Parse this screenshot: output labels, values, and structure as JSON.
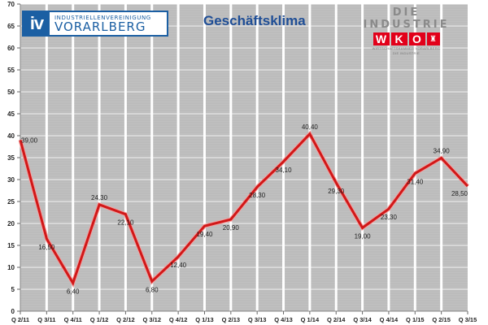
{
  "header": {
    "title": "Geschäftsklima",
    "iv_logo": {
      "mark": "iv",
      "line1": "INDUSTRIELLENVEREINIGUNG",
      "line2": "VORARLBERG",
      "color": "#1b5fa3"
    },
    "wko_logo": {
      "top_text": "DIE INDUSTRIE",
      "letters": [
        "W",
        "K",
        "O"
      ],
      "crest": "♜",
      "sub_line1": "WIRTSCHAFTSKAMMER VORARLBERG",
      "sub_line2": "DIE INDUSTRIE",
      "color": "#e2001a"
    }
  },
  "colors": {
    "plot_bg": "#c0c0c0",
    "grid": "#ffffff",
    "line": "#d01818",
    "title": "#1f4e96"
  },
  "chart_data": {
    "type": "line",
    "title": "Geschäftsklima",
    "xlabel": "",
    "ylabel": "",
    "ylim": [
      0,
      70
    ],
    "yticks": [
      0,
      5,
      10,
      15,
      20,
      25,
      30,
      35,
      40,
      45,
      50,
      55,
      60,
      65,
      70
    ],
    "grid": true,
    "legend": null,
    "categories": [
      "Q 2/11",
      "Q 3/11",
      "Q 4/11",
      "Q 1/12",
      "Q 2/12",
      "Q 3/12",
      "Q 4/12",
      "Q 1/13",
      "Q 2/13",
      "Q 3/13",
      "Q 4/13",
      "Q 1/14",
      "Q 2/14",
      "Q 3/14",
      "Q 4/14",
      "Q 1/15",
      "Q 2/15",
      "Q 3/15"
    ],
    "series": [
      {
        "name": "Geschäftsklima",
        "values": [
          39.0,
          16.5,
          6.4,
          24.3,
          22.1,
          6.8,
          12.4,
          19.4,
          20.9,
          28.3,
          34.1,
          40.4,
          29.3,
          19.0,
          23.3,
          31.4,
          34.9,
          28.5
        ],
        "labels": [
          "39,00",
          "16,50",
          "6,40",
          "24,30",
          "22,10",
          "6,80",
          "12,40",
          "19,40",
          "20,90",
          "28,30",
          "34,10",
          "40,40",
          "29,30",
          "19,00",
          "23,30",
          "31,40",
          "34,90",
          "28,50"
        ]
      }
    ]
  }
}
